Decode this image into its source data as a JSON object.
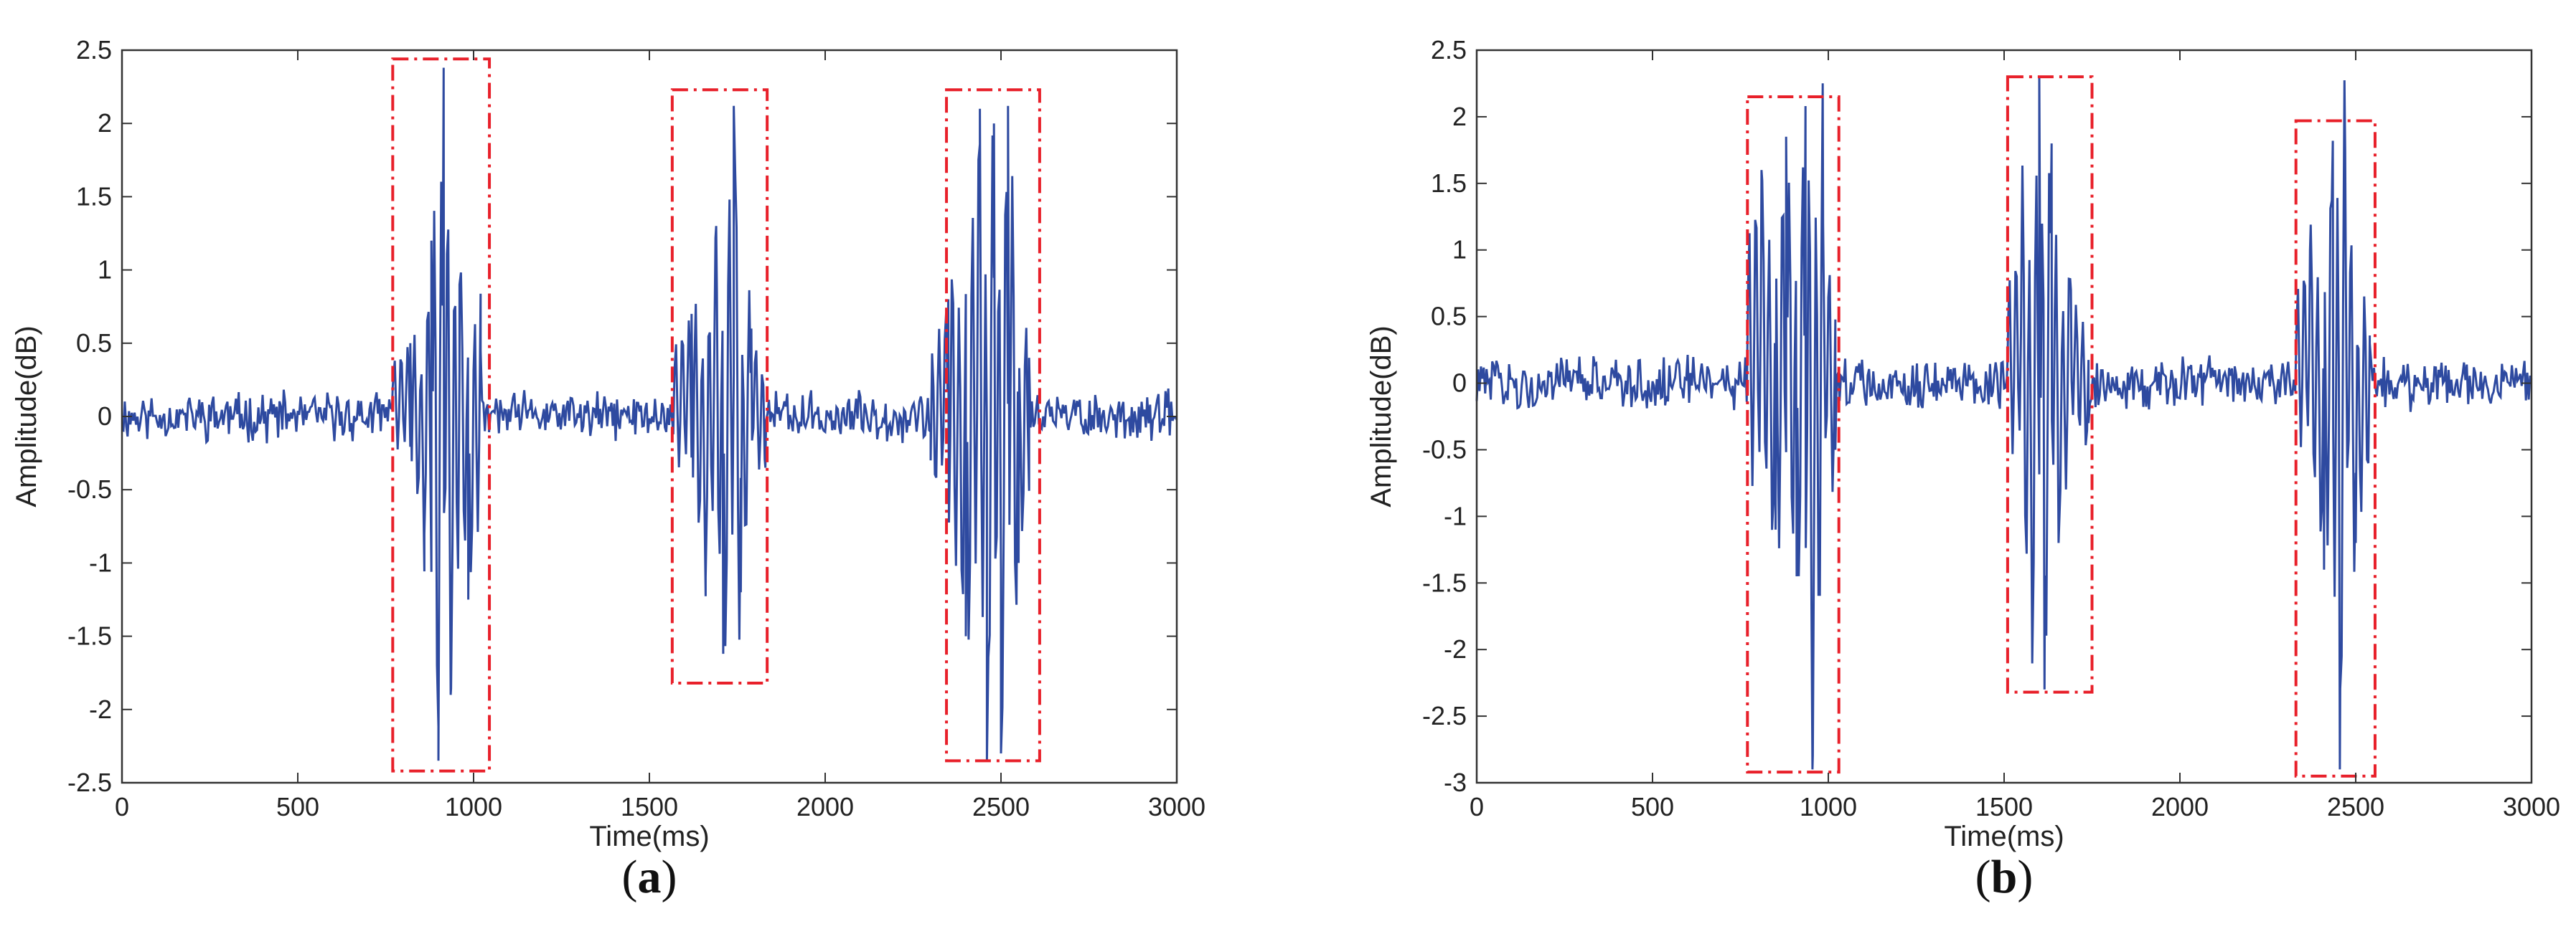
{
  "chart_data": [
    {
      "panel": "(a)",
      "panel_letter": "a",
      "type": "line",
      "xlabel": "Time(ms)",
      "ylabel": "Amplitude(dB)",
      "xlim": [
        0,
        3000
      ],
      "ylim": [
        -2.5,
        2.5
      ],
      "xticks": [
        0,
        500,
        1000,
        1500,
        2000,
        2500,
        3000
      ],
      "yticks": [
        -2.5,
        -2,
        -1.5,
        -1,
        -0.5,
        0,
        0.5,
        1,
        1.5,
        2,
        2.5
      ],
      "xtick_labels": [
        "0",
        "500",
        "1000",
        "1500",
        "2000",
        "2500",
        "3000"
      ],
      "ytick_labels": [
        "-2.5",
        "-2",
        "-1.5",
        "-1",
        "-0.5",
        "0",
        "0.5",
        "1",
        "1.5",
        "2",
        "2.5"
      ],
      "grid": false,
      "line_color": "#2e4aa0",
      "highlight_color": "#e8202a",
      "noise_amplitude": 0.12,
      "bursts": [
        {
          "x": [
            770,
            820,
            860,
            880,
            900,
            915,
            935,
            960,
            985,
            1020
          ],
          "y": [
            0.2,
            0.5,
            -0.8,
            1.2,
            -2.35,
            2.38,
            -1.9,
            0.9,
            -1.25,
            0.45
          ]
        },
        {
          "x": [
            1570,
            1620,
            1660,
            1690,
            1710,
            1740,
            1760,
            1790,
            1830
          ],
          "y": [
            0.15,
            0.7,
            -1.1,
            1.3,
            -1.62,
            2.12,
            -1.2,
            0.6,
            -0.35
          ]
        },
        {
          "x": [
            2300,
            2350,
            2400,
            2440,
            2460,
            2480,
            2500,
            2520,
            2550,
            2580
          ],
          "y": [
            -0.3,
            0.8,
            -1.5,
            2.1,
            -2.35,
            2.0,
            -2.3,
            2.12,
            -1.0,
            0.4
          ]
        }
      ],
      "boxes": [
        {
          "x0": 770,
          "x1": 1045,
          "y0": -2.42,
          "y1": 2.44
        },
        {
          "x0": 1565,
          "x1": 1835,
          "y0": -1.82,
          "y1": 2.23
        },
        {
          "x0": 2345,
          "x1": 2610,
          "y0": -2.35,
          "y1": 2.23
        }
      ]
    },
    {
      "panel": "(b)",
      "panel_letter": "b",
      "type": "line",
      "xlabel": "Time(ms)",
      "ylabel": "Amplitude(dB)",
      "xlim": [
        0,
        3000
      ],
      "ylim": [
        -3,
        2.5
      ],
      "xticks": [
        0,
        500,
        1000,
        1500,
        2000,
        2500,
        3000
      ],
      "yticks": [
        -3,
        -2.5,
        -2,
        -1.5,
        -1,
        -0.5,
        0,
        0.5,
        1,
        1.5,
        2,
        2.5
      ],
      "xtick_labels": [
        "0",
        "500",
        "1000",
        "1500",
        "2000",
        "2500",
        "3000"
      ],
      "ytick_labels": [
        "-3",
        "-2.5",
        "-2",
        "-1.5",
        "-1",
        "-0.5",
        "0",
        "0.5",
        "1",
        "1.5",
        "2",
        "2.5"
      ],
      "grid": false,
      "line_color": "#2e4aa0",
      "highlight_color": "#e8202a",
      "noise_amplitude": 0.14,
      "bursts": [
        {
          "x": [
            770,
            810,
            850,
            880,
            910,
            935,
            955,
            985,
            1020
          ],
          "y": [
            0.3,
            1.6,
            -1.1,
            1.85,
            -1.45,
            2.08,
            -2.9,
            1.2,
            -0.5
          ]
        },
        {
          "x": [
            1510,
            1550,
            1580,
            1600,
            1615,
            1635,
            1655,
            1690,
            1740
          ],
          "y": [
            0.2,
            1.1,
            -2.1,
            2.3,
            -2.3,
            1.8,
            -1.2,
            0.7,
            -0.3
          ]
        },
        {
          "x": [
            2330,
            2370,
            2410,
            2435,
            2455,
            2470,
            2500,
            2540
          ],
          "y": [
            0.2,
            1.0,
            -1.4,
            1.82,
            -2.9,
            1.75,
            -1.2,
            0.3
          ]
        }
      ],
      "boxes": [
        {
          "x0": 770,
          "x1": 1030,
          "y0": -2.92,
          "y1": 2.15
        },
        {
          "x0": 1510,
          "x1": 1750,
          "y0": -2.32,
          "y1": 2.3
        },
        {
          "x0": 2330,
          "x1": 2555,
          "y0": -2.95,
          "y1": 1.97
        }
      ]
    }
  ]
}
